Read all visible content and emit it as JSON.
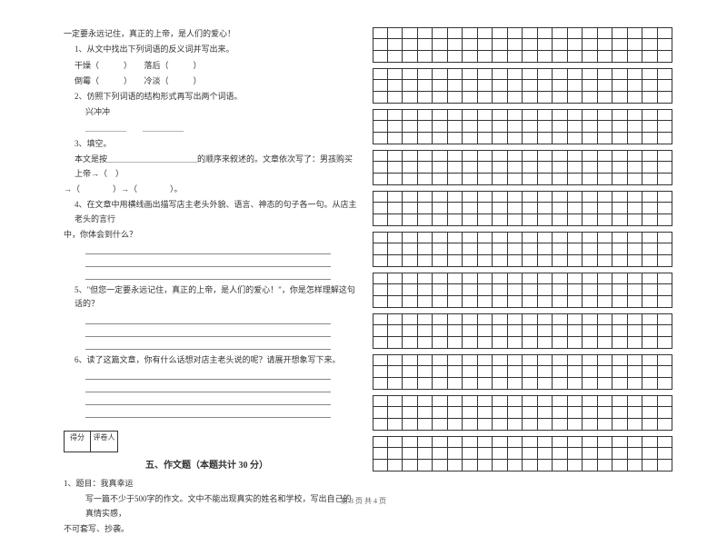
{
  "left": {
    "intro": "一定要永远记住，真正的上帝，是人们的爱心！",
    "q1": "1、从文中找出下列词语的反义词并写出来。",
    "q1a": "干燥（　　　）　　落后（　　　）",
    "q1b": "倒霉（　　　）　　冷淡（　　　）",
    "q2": "2、仿照下列词语的结构形式再写出两个词语。",
    "q2a": "兴冲冲",
    "q2b": "＿＿＿＿＿　　＿＿＿＿＿",
    "q3": "3、填空。",
    "q3a": "本文是按＿＿＿＿＿＿＿＿＿＿＿的顺序来叙述的。文章依次写了：男孩购买上帝→（　）",
    "q3b": "→（　　　　）→（　　　　）。",
    "q4": "4、在文章中用横线画出描写店主老头外貌、语言、神态的句子各一句。从店主老头的言行",
    "q4b": "中，你体会到什么？",
    "q5": "5、\"但您一定要永远记住，真正的上帝，是人们的爱心！\"，你是怎样理解这句话的？",
    "q6": "6、读了这篇文章，你有什么话想对店主老头说的呢？请展开想象写下来。",
    "score_label1": "得分",
    "score_label2": "评卷人",
    "section5": "五、作文题（本题共计 30 分）",
    "essay1": "1、题目：我真幸运",
    "essay2": "写一篇不少于500字的作文。文中不能出现真实的姓名和学校，写出自己的真情实感，",
    "essay3": "不可套写、抄袭。"
  },
  "right": {
    "blocks": [
      {
        "rows": 3,
        "cols": 20
      },
      {
        "rows": 3,
        "cols": 20
      },
      {
        "rows": 3,
        "cols": 20
      },
      {
        "rows": 3,
        "cols": 20
      },
      {
        "rows": 3,
        "cols": 20
      },
      {
        "rows": 3,
        "cols": 20
      },
      {
        "rows": 3,
        "cols": 20
      },
      {
        "rows": 3,
        "cols": 20
      },
      {
        "rows": 3,
        "cols": 20
      },
      {
        "rows": 3,
        "cols": 20
      },
      {
        "rows": 3,
        "cols": 20
      }
    ]
  },
  "footer": "第 3 页 共 4 页",
  "colors": {
    "text": "#333333",
    "border": "#333333",
    "line": "#888888",
    "bg": "#ffffff"
  }
}
